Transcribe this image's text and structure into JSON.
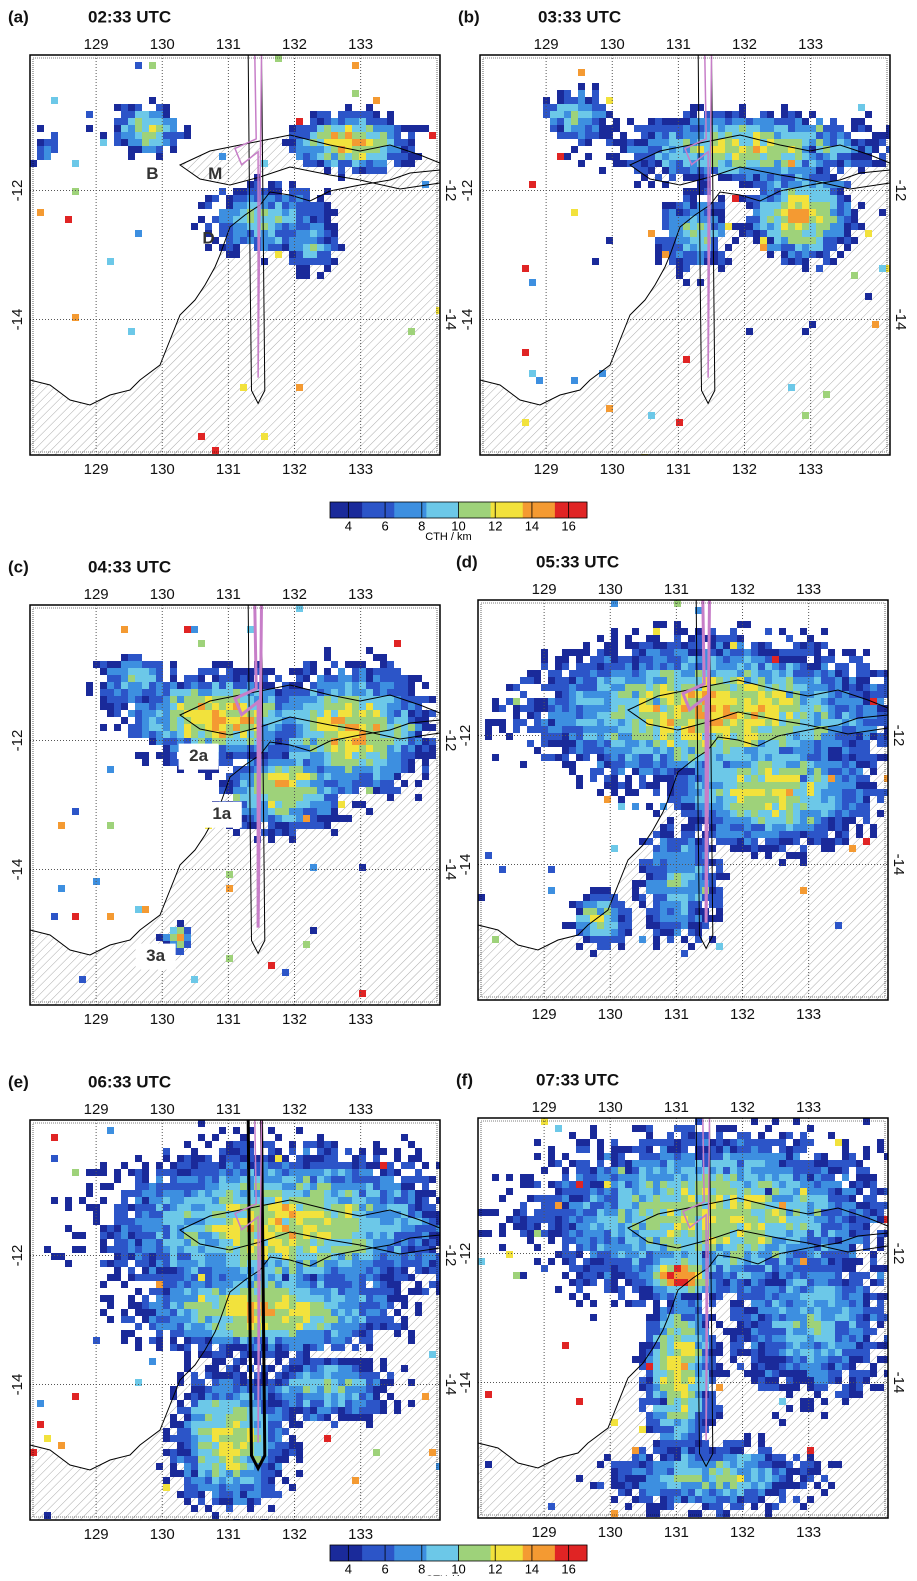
{
  "panels": [
    {
      "label": "(a)",
      "time": "02:33 UTC",
      "annotations": [
        "B",
        "M",
        "D"
      ]
    },
    {
      "label": "(b)",
      "time": "03:33 UTC",
      "annotations": []
    },
    {
      "label": "(c)",
      "time": "04:33 UTC",
      "annotations": [
        "2a",
        "1a",
        "3a"
      ]
    },
    {
      "label": "(d)",
      "time": "05:33 UTC",
      "annotations": []
    },
    {
      "label": "(e)",
      "time": "06:33 UTC",
      "annotations": []
    },
    {
      "label": "(f)",
      "time": "07:33 UTC",
      "annotations": []
    }
  ],
  "lon_lim": [
    128,
    134.2
  ],
  "lat_lim": [
    -16.1,
    -9.9
  ],
  "lon_ticks": [
    129,
    130,
    131,
    132,
    133
  ],
  "lat_ticks": [
    -12,
    -14
  ],
  "colorbar": {
    "label": "CTH / km",
    "lim": [
      3,
      17
    ],
    "ticks": [
      4,
      6,
      8,
      10,
      12,
      14,
      16
    ],
    "colors": [
      "#1a2a9a",
      "#2c55c8",
      "#3d8fe0",
      "#6cc8e8",
      "#9ed27a",
      "#f2e23c",
      "#f49a32",
      "#e02424"
    ]
  }
}
